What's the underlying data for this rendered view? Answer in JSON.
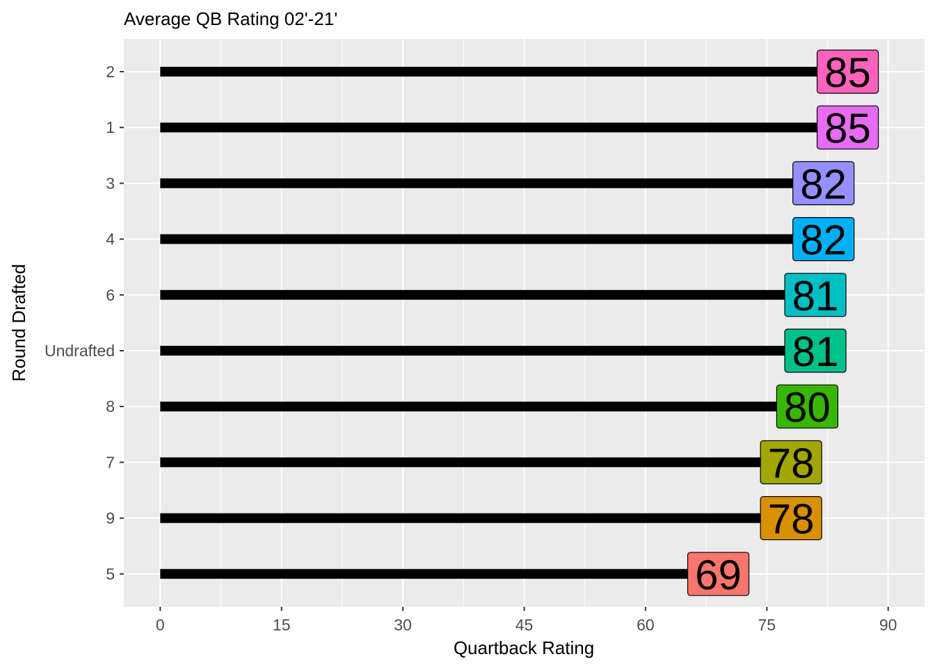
{
  "chart_data": {
    "type": "bar",
    "orientation": "horizontal",
    "title": "Average QB Rating 02'-21'",
    "xlabel": "Quartback Rating",
    "ylabel": "Round Drafted",
    "xlim": [
      -4.5,
      94.5
    ],
    "xticks": [
      0,
      15,
      30,
      45,
      60,
      75,
      90
    ],
    "grid": true,
    "legend": "none",
    "categories": [
      "2",
      "1",
      "3",
      "4",
      "6",
      "Undrafted",
      "8",
      "7",
      "9",
      "5"
    ],
    "values": [
      85,
      85,
      82,
      82,
      81,
      81,
      80,
      78,
      78,
      69
    ],
    "label_colors": [
      "#FF62BC",
      "#E76BF3",
      "#9590FF",
      "#00B0F6",
      "#00BFC4",
      "#00C08B",
      "#39B600",
      "#A3A500",
      "#D89000",
      "#F8766D"
    ],
    "bar_color": "#000000",
    "panel_color": "#EBEBEB"
  }
}
